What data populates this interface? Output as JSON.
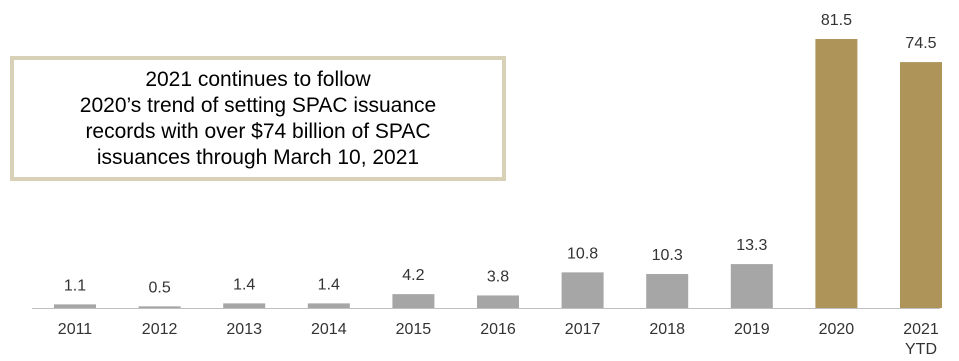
{
  "chart_data": {
    "type": "bar",
    "title": "",
    "xlabel": "",
    "ylabel": "",
    "categories": [
      "2011",
      "2012",
      "2013",
      "2014",
      "2015",
      "2016",
      "2017",
      "2018",
      "2019",
      "2020",
      "2021 YTD"
    ],
    "values": [
      1.1,
      0.5,
      1.4,
      1.4,
      4.2,
      3.8,
      10.8,
      10.3,
      13.3,
      81.5,
      74.5
    ],
    "value_labels": [
      "1.1",
      "0.5",
      "1.4",
      "1.4",
      "4.2",
      "3.8",
      "10.8",
      "10.3",
      "13.3",
      "81.5",
      "74.5"
    ],
    "ylim": [
      0,
      81.5
    ],
    "grid": false,
    "colors": {
      "default": "#a6a6a6",
      "highlight": "#ae9459",
      "highlight_categories": [
        "2020",
        "2021 YTD"
      ]
    }
  },
  "annotation": {
    "lines": [
      "2021 continues to follow",
      "2020’s trend of setting SPAC issuance",
      "records with over $74 billion of SPAC",
      "issuances through March 10, 2021"
    ],
    "border_color": "#d9d0b8"
  }
}
